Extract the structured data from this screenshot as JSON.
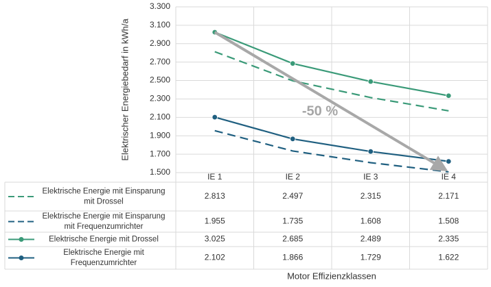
{
  "chart_data": {
    "type": "line",
    "ylabel": "Elektrischer Energiebedarf in kWh/a",
    "xlabel": "Motor Effizienzklassen",
    "categories": [
      "IE 1",
      "IE 2",
      "IE 3",
      "IE 4"
    ],
    "ylim": [
      1500,
      3300
    ],
    "yticks": [
      1500,
      1700,
      1900,
      2100,
      2300,
      2500,
      2700,
      2900,
      3100,
      3300
    ],
    "ytick_labels": [
      "1.500",
      "1.700",
      "1.900",
      "2.100",
      "2.300",
      "2.500",
      "2.700",
      "2.900",
      "3.100",
      "3.300"
    ],
    "grid": true,
    "annotation": {
      "text": "-50 %",
      "arrow_from": {
        "category": "IE 1",
        "value": 3025
      },
      "arrow_to": {
        "category": "IE 4",
        "value": 1508
      }
    },
    "series": [
      {
        "name": "Elektrische Energie mit Einsparung mit Drossel",
        "legend_lines": [
          "Elektrische Energie mit Einsparung",
          "mit Drossel"
        ],
        "values": [
          2813,
          2497,
          2315,
          2171
        ],
        "labels": [
          "2.813",
          "2.497",
          "2.315",
          "2.171"
        ],
        "color": "#3a9a78",
        "dashed": true,
        "markers": false
      },
      {
        "name": "Elektrische Energie mit Einsparung mit Frequenzumrichter",
        "legend_lines": [
          "Elektrische Energie mit Einsparung",
          "mit Frequenzumrichter"
        ],
        "values": [
          1955,
          1735,
          1608,
          1508
        ],
        "labels": [
          "1.955",
          "1.735",
          "1.608",
          "1.508"
        ],
        "color": "#1f5f80",
        "dashed": true,
        "markers": false
      },
      {
        "name": "Elektrische Energie mit Drossel",
        "legend_lines": [
          "Elektrische Energie mit Drossel"
        ],
        "values": [
          3025,
          2685,
          2489,
          2335
        ],
        "labels": [
          "3.025",
          "2.685",
          "2.489",
          "2.335"
        ],
        "color": "#3a9a78",
        "dashed": false,
        "markers": true
      },
      {
        "name": "Elektrische Energie mit Frequenzumrichter",
        "legend_lines": [
          "Elektrische Energie mit",
          "Frequenzumrichter"
        ],
        "values": [
          2102,
          1866,
          1729,
          1622
        ],
        "labels": [
          "2.102",
          "1.866",
          "1.729",
          "1.622"
        ],
        "color": "#1f5f80",
        "dashed": false,
        "markers": true
      }
    ]
  }
}
